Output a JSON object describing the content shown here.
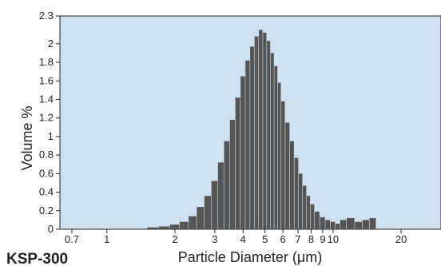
{
  "chart_data": {
    "type": "bar",
    "title": "",
    "xlabel": "Particle Diameter (μm)",
    "ylabel": "Volume %",
    "x_scale": "log",
    "xlim": [
      0.62,
      30
    ],
    "ylim": [
      0,
      2.3
    ],
    "grid": false,
    "legend": "none",
    "yticks": [
      0,
      0.2,
      0.4,
      0.6,
      0.8,
      1,
      1.2,
      1.4,
      1.6,
      1.8,
      2,
      2.3
    ],
    "ytick_labels": [
      "0",
      "0.2",
      "0.4",
      "0.6",
      "0.8",
      "1",
      "1.2",
      "1.4",
      "1.6",
      "1.8",
      "2",
      "2.3"
    ],
    "xticks": [
      0.7,
      1,
      2,
      3,
      4,
      5,
      6,
      7,
      8,
      9,
      10,
      20
    ],
    "xtick_labels": [
      "0.7",
      "1",
      "2",
      "3",
      "4",
      "5",
      "6",
      "7",
      "8",
      "9",
      "10",
      "20"
    ],
    "x": [
      1.6,
      1.8,
      2.0,
      2.2,
      2.4,
      2.6,
      2.8,
      3.0,
      3.2,
      3.4,
      3.6,
      3.8,
      4.0,
      4.2,
      4.4,
      4.6,
      4.8,
      5.0,
      5.2,
      5.4,
      5.6,
      5.8,
      6.0,
      6.3,
      6.6,
      6.9,
      7.2,
      7.5,
      7.8,
      8.1,
      8.5,
      9.0,
      9.5,
      10.0,
      10.5,
      11.0,
      12.0,
      13.0,
      14.0,
      15.0
    ],
    "values": [
      0.02,
      0.03,
      0.05,
      0.08,
      0.14,
      0.24,
      0.36,
      0.52,
      0.72,
      0.95,
      1.18,
      1.42,
      1.65,
      1.82,
      1.97,
      2.08,
      2.15,
      2.12,
      2.03,
      1.9,
      1.76,
      1.58,
      1.38,
      1.15,
      0.95,
      0.77,
      0.6,
      0.47,
      0.36,
      0.27,
      0.19,
      0.13,
      0.1,
      0.08,
      0.06,
      0.1,
      0.12,
      0.08,
      0.1,
      0.12
    ]
  },
  "footer_label": "KSP-300",
  "colors": {
    "plot_background": "#cfe0f1",
    "bar": "#555555",
    "axis": "#222222"
  }
}
